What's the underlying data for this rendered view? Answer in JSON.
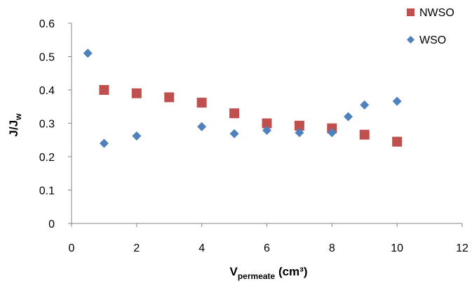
{
  "chart_data": {
    "type": "scatter",
    "title": "",
    "xlabel": {
      "main": "V",
      "sub": "permeate",
      "unit": " (cm³)"
    },
    "ylabel": {
      "main": "J/J",
      "sub": "w"
    },
    "xlim": [
      0,
      12
    ],
    "ylim": [
      0,
      0.6
    ],
    "x_ticks": [
      0,
      2,
      4,
      6,
      8,
      10,
      12
    ],
    "y_ticks": [
      0,
      0.1,
      0.2,
      0.3,
      0.4,
      0.5,
      0.6
    ],
    "x_tick_labels": [
      "0",
      "2",
      "4",
      "6",
      "8",
      "10",
      "12"
    ],
    "y_tick_labels": [
      "0",
      "0.1",
      "0.2",
      "0.3",
      "0.4",
      "0.5",
      "0.6"
    ],
    "grid": false,
    "legend_position": "top-right",
    "series": [
      {
        "name": "NWSO",
        "marker": "square",
        "color": "#c0504d",
        "x": [
          1,
          2,
          3,
          4,
          5,
          6,
          7,
          8,
          9,
          10
        ],
        "y": [
          0.4,
          0.39,
          0.378,
          0.362,
          0.33,
          0.3,
          0.293,
          0.285,
          0.266,
          0.245
        ]
      },
      {
        "name": "WSO",
        "marker": "diamond",
        "color": "#4f81bd",
        "x": [
          0.5,
          1,
          2,
          4,
          5,
          6,
          7,
          8,
          8.5,
          9,
          10
        ],
        "y": [
          0.51,
          0.24,
          0.262,
          0.29,
          0.269,
          0.279,
          0.272,
          0.272,
          0.32,
          0.355,
          0.366
        ]
      }
    ]
  }
}
